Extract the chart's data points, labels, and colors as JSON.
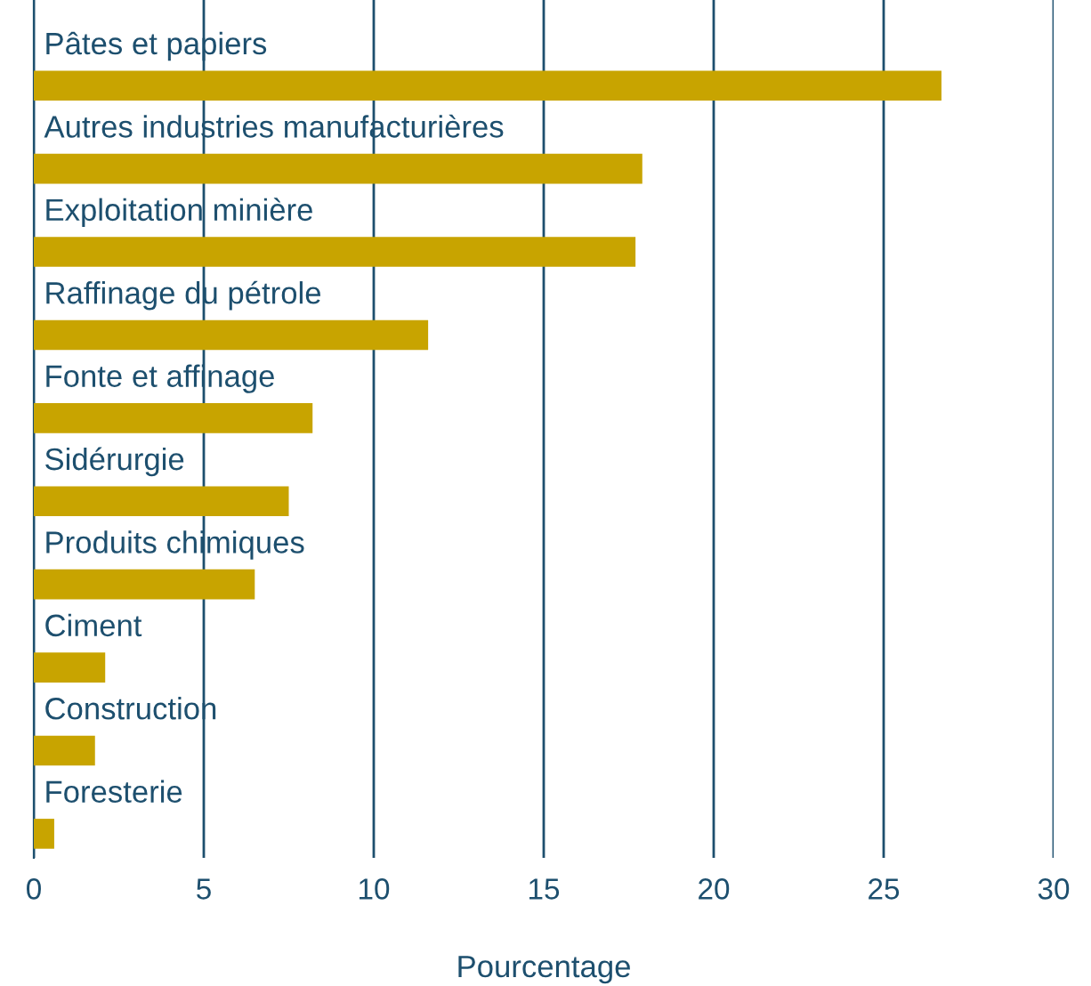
{
  "chart_data": {
    "type": "bar",
    "orientation": "horizontal",
    "xlabel": "Pourcentage",
    "categories": [
      "Pâtes et papiers",
      "Autres industries manufacturières",
      "Exploitation minière",
      "Raffinage du pétrole",
      "Fonte et affinage",
      "Sidérurgie",
      "Produits chimiques",
      "Ciment",
      "Construction",
      "Foresterie"
    ],
    "values": [
      26.7,
      17.9,
      17.7,
      11.6,
      8.2,
      7.5,
      6.5,
      2.1,
      1.8,
      0.6
    ],
    "color": "#c8a400",
    "xlim": [
      0,
      30
    ],
    "xticks": [
      0,
      5,
      10,
      15,
      20,
      25,
      30
    ],
    "grid": "x"
  }
}
